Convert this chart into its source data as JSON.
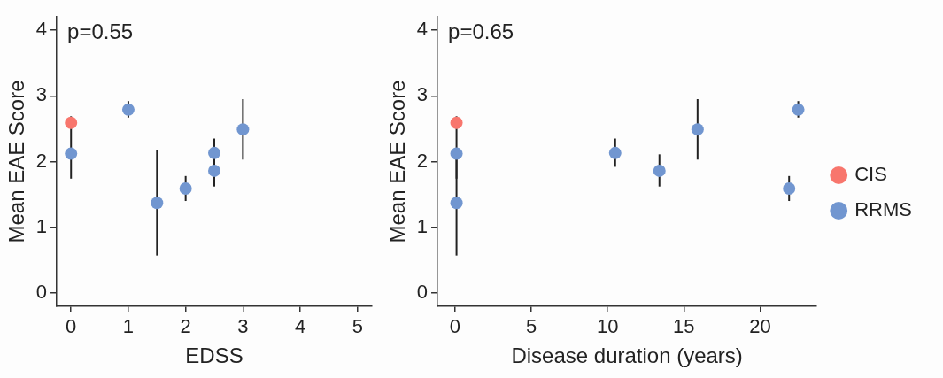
{
  "chart_data": [
    {
      "type": "scatter",
      "xlabel": "EDSS",
      "ylabel": "Mean EAE Score",
      "annotations": [
        "p=0.55"
      ],
      "xlim": [
        -0.25,
        5.25
      ],
      "xticks": [
        0,
        1,
        2,
        3,
        4,
        5
      ],
      "ylim": [
        -0.2,
        4.2
      ],
      "yticks": [
        0,
        1,
        2,
        3,
        4
      ],
      "grid": false,
      "legend": false,
      "marker": "circle",
      "series": [
        {
          "color": "#f8766d",
          "x": [
            0
          ],
          "values": [
            2.59
          ],
          "errors": [
            [
              2.5,
              2.69
            ]
          ]
        },
        {
          "color": "#7196d0",
          "x": [
            0,
            1,
            1.5,
            2,
            2.5,
            2.5,
            3
          ],
          "values": [
            2.12,
            2.79,
            1.37,
            1.59,
            2.13,
            1.86,
            2.49
          ],
          "errors": [
            [
              1.74,
              2.5
            ],
            [
              2.67,
              2.92
            ],
            [
              0.57,
              2.17
            ],
            [
              1.4,
              1.78
            ],
            [
              1.92,
              2.35
            ],
            [
              1.62,
              2.1
            ],
            [
              2.03,
              2.95
            ]
          ]
        }
      ]
    },
    {
      "type": "scatter",
      "xlabel": "Disease duration (years)",
      "ylabel": "Mean EAE Score",
      "annotations": [
        "p=0.65"
      ],
      "xlim": [
        -1.15,
        23.7
      ],
      "xticks": [
        0,
        5,
        10,
        15,
        20
      ],
      "ylim": [
        -0.2,
        4.2
      ],
      "yticks": [
        0,
        1,
        2,
        3,
        4
      ],
      "grid": false,
      "legend": "right",
      "marker": "circle",
      "series": [
        {
          "name": "CIS",
          "color": "#f8766d",
          "x": [
            0.1
          ],
          "values": [
            2.59
          ],
          "errors": [
            [
              2.5,
              2.69
            ]
          ]
        },
        {
          "name": "RRMS",
          "color": "#7196d0",
          "x": [
            0.1,
            0.1,
            10.5,
            13.4,
            15.9,
            21.9,
            22.5
          ],
          "values": [
            2.12,
            1.37,
            2.13,
            1.86,
            2.49,
            1.59,
            2.79
          ],
          "errors": [
            [
              1.74,
              2.5
            ],
            [
              0.57,
              2.17
            ],
            [
              1.92,
              2.35
            ],
            [
              1.62,
              2.11
            ],
            [
              2.03,
              2.95
            ],
            [
              1.4,
              1.78
            ],
            [
              2.67,
              2.92
            ]
          ]
        }
      ]
    }
  ]
}
